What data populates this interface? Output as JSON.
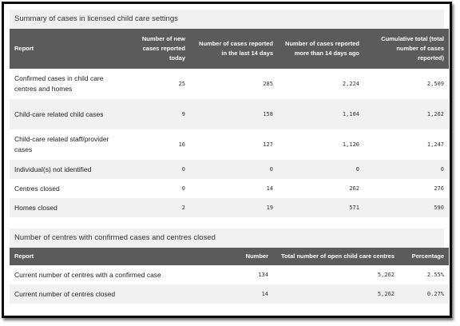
{
  "summary": {
    "title": "Summary of cases in licensed child care settings",
    "headers": [
      "Report",
      "Number of new cases reported today",
      "Number of cases reported in the last 14 days",
      "Number of cases reported more than 14 days ago",
      "Cumulative total (total number of cases reported)"
    ],
    "rows": [
      {
        "label": "Confirmed cases in child care centres and homes",
        "new": "25",
        "last14": "285",
        "older": "2,224",
        "total": "2,509"
      },
      {
        "label": "Child-care related child cases",
        "new": "9",
        "last14": "158",
        "older": "1,104",
        "total": "1,262"
      },
      {
        "label": "Child-care related staff/provider cases",
        "new": "16",
        "last14": "127",
        "older": "1,120",
        "total": "1,247"
      },
      {
        "label": "Individual(s) not identified",
        "new": "0",
        "last14": "0",
        "older": "0",
        "total": "0"
      },
      {
        "label": "Centres closed",
        "new": "0",
        "last14": "14",
        "older": "262",
        "total": "276"
      },
      {
        "label": "Homes closed",
        "new": "2",
        "last14": "19",
        "older": "571",
        "total": "590"
      }
    ]
  },
  "centres": {
    "title": "Number of centres with confirmed cases and centres closed",
    "headers": [
      "Report",
      "Number",
      "Total number of open child care centres",
      "Percentage"
    ],
    "rows": [
      {
        "label": "Current number of centres with a confirmed case",
        "number": "134",
        "open": "5,262",
        "pct": "2.55%"
      },
      {
        "label": "Current number of centres closed",
        "number": "14",
        "open": "5,262",
        "pct": "0.27%"
      }
    ]
  }
}
